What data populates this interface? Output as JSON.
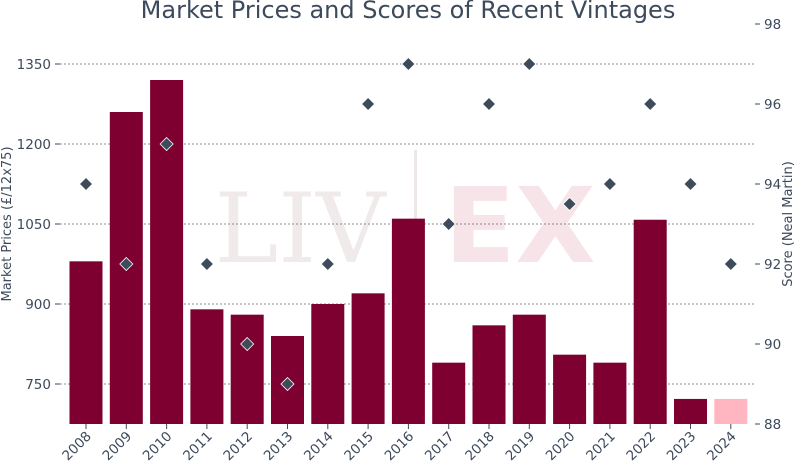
{
  "chart_data": {
    "type": "bar",
    "title": "Market Prices and Scores of Recent Vintages",
    "ylabel": "Market Prices (£/12x75)",
    "y2label": "Score (Neal Martin)",
    "categories": [
      "2008",
      "2009",
      "2010",
      "2011",
      "2012",
      "2013",
      "2014",
      "2015",
      "2016",
      "2017",
      "2018",
      "2019",
      "2020",
      "2021",
      "2022",
      "2023",
      "2024"
    ],
    "series": [
      {
        "kind": "bar",
        "values": [
          980,
          1260,
          1320,
          890,
          880,
          840,
          900,
          920,
          1060,
          790,
          860,
          880,
          805,
          790,
          1058,
          722,
          722
        ],
        "color": "#7d0030",
        "highlight_color": "#ffb6c1"
      },
      {
        "kind": "scatter",
        "axis": "right",
        "values": [
          94,
          92,
          95,
          92,
          90,
          89,
          92,
          96,
          97,
          93,
          96,
          97,
          93.5,
          94,
          96,
          94,
          92
        ],
        "color": "#3e4b5b"
      }
    ],
    "ylim": [
      675,
      1425
    ],
    "y2lim": [
      88,
      98
    ],
    "yticks": [
      750,
      900,
      1050,
      1200,
      1350
    ],
    "y2ticks": [
      88,
      90,
      92,
      94,
      96,
      98
    ],
    "grid": true,
    "watermark": "LIV-EX"
  }
}
